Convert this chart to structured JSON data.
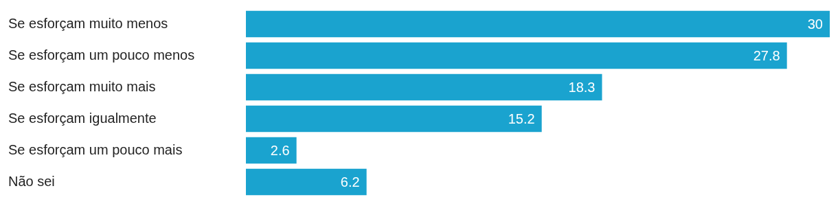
{
  "chart_data": {
    "type": "bar",
    "orientation": "horizontal",
    "categories": [
      "Se esforçam muito menos",
      "Se esforçam um pouco menos",
      "Se esforçam muito mais",
      "Se esforçam igualmente",
      "Se esforçam um pouco mais",
      "Não sei"
    ],
    "values": [
      30,
      27.8,
      18.3,
      15.2,
      2.6,
      6.2
    ],
    "color": "#1aa3cf",
    "data_labels": true,
    "legend": false
  }
}
